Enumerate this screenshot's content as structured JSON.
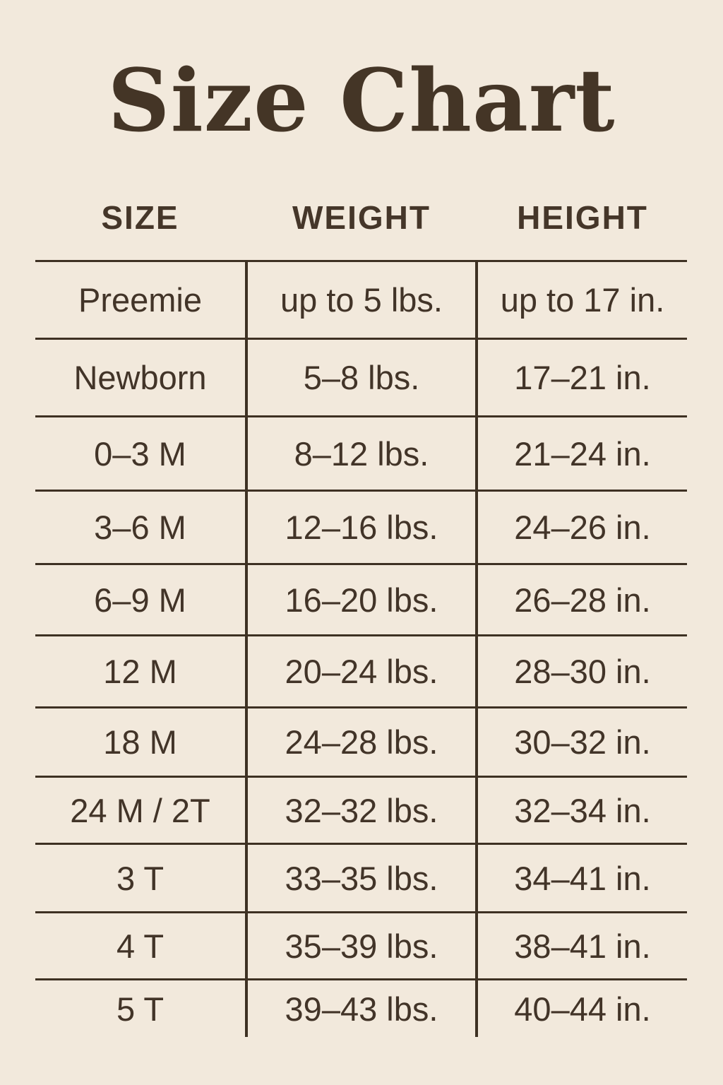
{
  "title": "Size Chart",
  "colors": {
    "background": "#f2e9dc",
    "ink": "#423428",
    "rule": "#3e3123"
  },
  "table": {
    "headers": [
      "SIZE",
      "WEIGHT",
      "HEIGHT"
    ],
    "rows": [
      [
        "Preemie",
        "up to 5 lbs.",
        "up to 17 in."
      ],
      [
        "Newborn",
        "5–8 lbs.",
        "17–21 in."
      ],
      [
        "0–3 M",
        "8–12 lbs.",
        "21–24 in."
      ],
      [
        "3–6 M",
        "12–16 lbs.",
        "24–26 in."
      ],
      [
        "6–9 M",
        "16–20 lbs.",
        "26–28 in."
      ],
      [
        "12 M",
        "20–24 lbs.",
        "28–30 in."
      ],
      [
        "18 M",
        "24–28 lbs.",
        "30–32 in."
      ],
      [
        "24 M / 2T",
        "32–32 lbs.",
        "32–34 in."
      ],
      [
        "3 T",
        "33–35 lbs.",
        "34–41 in."
      ],
      [
        "4 T",
        "35–39 lbs.",
        "38–41 in."
      ],
      [
        "5 T",
        "39–43 lbs.",
        "40–44 in."
      ]
    ]
  },
  "chart_data": {
    "type": "table",
    "title": "Size Chart",
    "columns": [
      "SIZE",
      "WEIGHT",
      "HEIGHT"
    ],
    "rows": [
      {
        "size": "Preemie",
        "weight": "up to 5 lbs.",
        "height": "up to 17 in."
      },
      {
        "size": "Newborn",
        "weight": "5–8 lbs.",
        "height": "17–21 in."
      },
      {
        "size": "0–3 M",
        "weight": "8–12 lbs.",
        "height": "21–24 in."
      },
      {
        "size": "3–6 M",
        "weight": "12–16 lbs.",
        "height": "24–26 in."
      },
      {
        "size": "6–9 M",
        "weight": "16–20 lbs.",
        "height": "26–28 in."
      },
      {
        "size": "12 M",
        "weight": "20–24 lbs.",
        "height": "28–30 in."
      },
      {
        "size": "18 M",
        "weight": "24–28 lbs.",
        "height": "30–32 in."
      },
      {
        "size": "24 M / 2T",
        "weight": "32–32 lbs.",
        "height": "32–34 in."
      },
      {
        "size": "3 T",
        "weight": "33–35 lbs.",
        "height": "34–41 in."
      },
      {
        "size": "4 T",
        "weight": "35–39 lbs.",
        "height": "38–41 in."
      },
      {
        "size": "5 T",
        "weight": "39–43 lbs.",
        "height": "40–44 in."
      }
    ]
  }
}
